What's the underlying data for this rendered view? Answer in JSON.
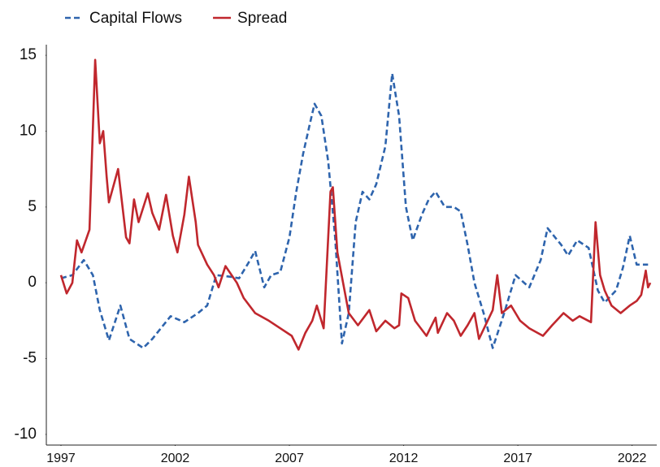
{
  "chart_data": {
    "type": "line",
    "legend": "top-left",
    "grid": false,
    "xlim": [
      1996.36,
      2023.08
    ],
    "ylim": [
      -10.7,
      15.7
    ],
    "xticks": [
      1997,
      2002,
      2007,
      2012,
      2017,
      2022
    ],
    "yticks": [
      -10,
      -5,
      0,
      5,
      10,
      15
    ],
    "series": [
      {
        "name": "Capital Flows",
        "color": "#2e64ad",
        "line_style": "dashed",
        "x": [
          1997.0,
          1997.5,
          1998.0,
          1998.4,
          1998.7,
          1999.1,
          1999.6,
          2000.0,
          2000.6,
          2001.0,
          2001.8,
          2002.4,
          2003.0,
          2003.4,
          2003.8,
          2004.4,
          2004.8,
          2005.2,
          2005.5,
          2005.9,
          2006.2,
          2006.6,
          2007.0,
          2007.3,
          2007.6,
          2007.9,
          2008.1,
          2008.4,
          2008.7,
          2009.0,
          2009.3,
          2009.6,
          2009.9,
          2010.2,
          2010.5,
          2010.8,
          2011.2,
          2011.5,
          2011.8,
          2012.1,
          2012.4,
          2012.8,
          2013.1,
          2013.4,
          2013.8,
          2014.2,
          2014.5,
          2014.8,
          2015.1,
          2015.5,
          2015.9,
          2016.4,
          2016.9,
          2017.5,
          2018.0,
          2018.3,
          2018.9,
          2019.2,
          2019.6,
          2020.1,
          2020.5,
          2020.8,
          2021.3,
          2021.6,
          2021.9,
          2022.2,
          2022.7
        ],
        "values": [
          0.3,
          0.5,
          1.5,
          0.5,
          -1.8,
          -3.8,
          -1.5,
          -3.7,
          -4.3,
          -3.7,
          -2.2,
          -2.6,
          -2.0,
          -1.5,
          0.5,
          0.4,
          0.3,
          1.3,
          2.1,
          -0.3,
          0.5,
          0.7,
          3.0,
          6.0,
          8.5,
          10.5,
          11.8,
          11.0,
          8.0,
          3.0,
          -4.0,
          -2.0,
          4.0,
          6.0,
          5.5,
          6.5,
          9.0,
          13.8,
          11.0,
          5.0,
          2.8,
          4.5,
          5.5,
          6.0,
          5.0,
          5.0,
          4.7,
          2.5,
          0.0,
          -2.0,
          -4.3,
          -2.0,
          0.5,
          -0.3,
          1.5,
          3.6,
          2.5,
          1.8,
          2.8,
          2.3,
          -0.5,
          -1.3,
          -0.5,
          1.0,
          3.1,
          1.2,
          1.2
        ]
      },
      {
        "name": "Spread",
        "color": "#c0272d",
        "line_style": "solid",
        "x": [
          1997.0,
          1997.25,
          1997.5,
          1997.7,
          1997.9,
          1998.25,
          1998.5,
          1998.7,
          1998.85,
          1999.0,
          1999.1,
          1999.5,
          1999.85,
          2000.0,
          2000.2,
          2000.4,
          2000.8,
          2001.0,
          2001.3,
          2001.6,
          2001.9,
          2002.1,
          2002.4,
          2002.6,
          2002.9,
          2003.0,
          2003.4,
          2003.7,
          2003.9,
          2004.2,
          2004.7,
          2005.0,
          2005.5,
          2006.1,
          2006.6,
          2007.1,
          2007.4,
          2007.7,
          2008.0,
          2008.2,
          2008.5,
          2008.8,
          2008.9,
          2009.1,
          2009.35,
          2009.6,
          2010.0,
          2010.5,
          2010.8,
          2011.2,
          2011.6,
          2011.8,
          2011.9,
          2012.2,
          2012.5,
          2013.0,
          2013.4,
          2013.5,
          2013.9,
          2014.2,
          2014.5,
          2014.8,
          2015.1,
          2015.3,
          2015.9,
          2016.1,
          2016.3,
          2016.7,
          2017.1,
          2017.5,
          2018.1,
          2018.5,
          2019.0,
          2019.4,
          2019.7,
          2020.2,
          2020.4,
          2020.6,
          2020.8,
          2021.1,
          2021.5,
          2021.9,
          2022.2,
          2022.4,
          2022.6,
          2022.7,
          2022.8
        ],
        "values": [
          0.5,
          -0.7,
          0.0,
          2.8,
          2.0,
          3.5,
          14.7,
          9.2,
          10.0,
          7.0,
          5.3,
          7.5,
          3.0,
          2.6,
          5.5,
          4.0,
          5.9,
          4.6,
          3.5,
          5.8,
          3.1,
          2.0,
          4.5,
          7.0,
          4.0,
          2.5,
          1.2,
          0.5,
          -0.3,
          1.1,
          0.0,
          -1.0,
          -2.0,
          -2.5,
          -3.0,
          -3.5,
          -4.4,
          -3.3,
          -2.5,
          -1.5,
          -3.0,
          6.0,
          6.3,
          2.0,
          0.0,
          -2.0,
          -2.8,
          -1.8,
          -3.2,
          -2.5,
          -3.0,
          -2.8,
          -0.7,
          -1.0,
          -2.5,
          -3.5,
          -2.3,
          -3.3,
          -2.0,
          -2.5,
          -3.5,
          -2.8,
          -2.0,
          -3.7,
          -1.8,
          0.5,
          -2.0,
          -1.5,
          -2.5,
          -3.0,
          -3.5,
          -2.8,
          -2.0,
          -2.5,
          -2.2,
          -2.6,
          4.0,
          0.5,
          -0.5,
          -1.5,
          -2.0,
          -1.5,
          -1.2,
          -0.8,
          0.8,
          -0.3,
          0.0
        ]
      }
    ]
  }
}
